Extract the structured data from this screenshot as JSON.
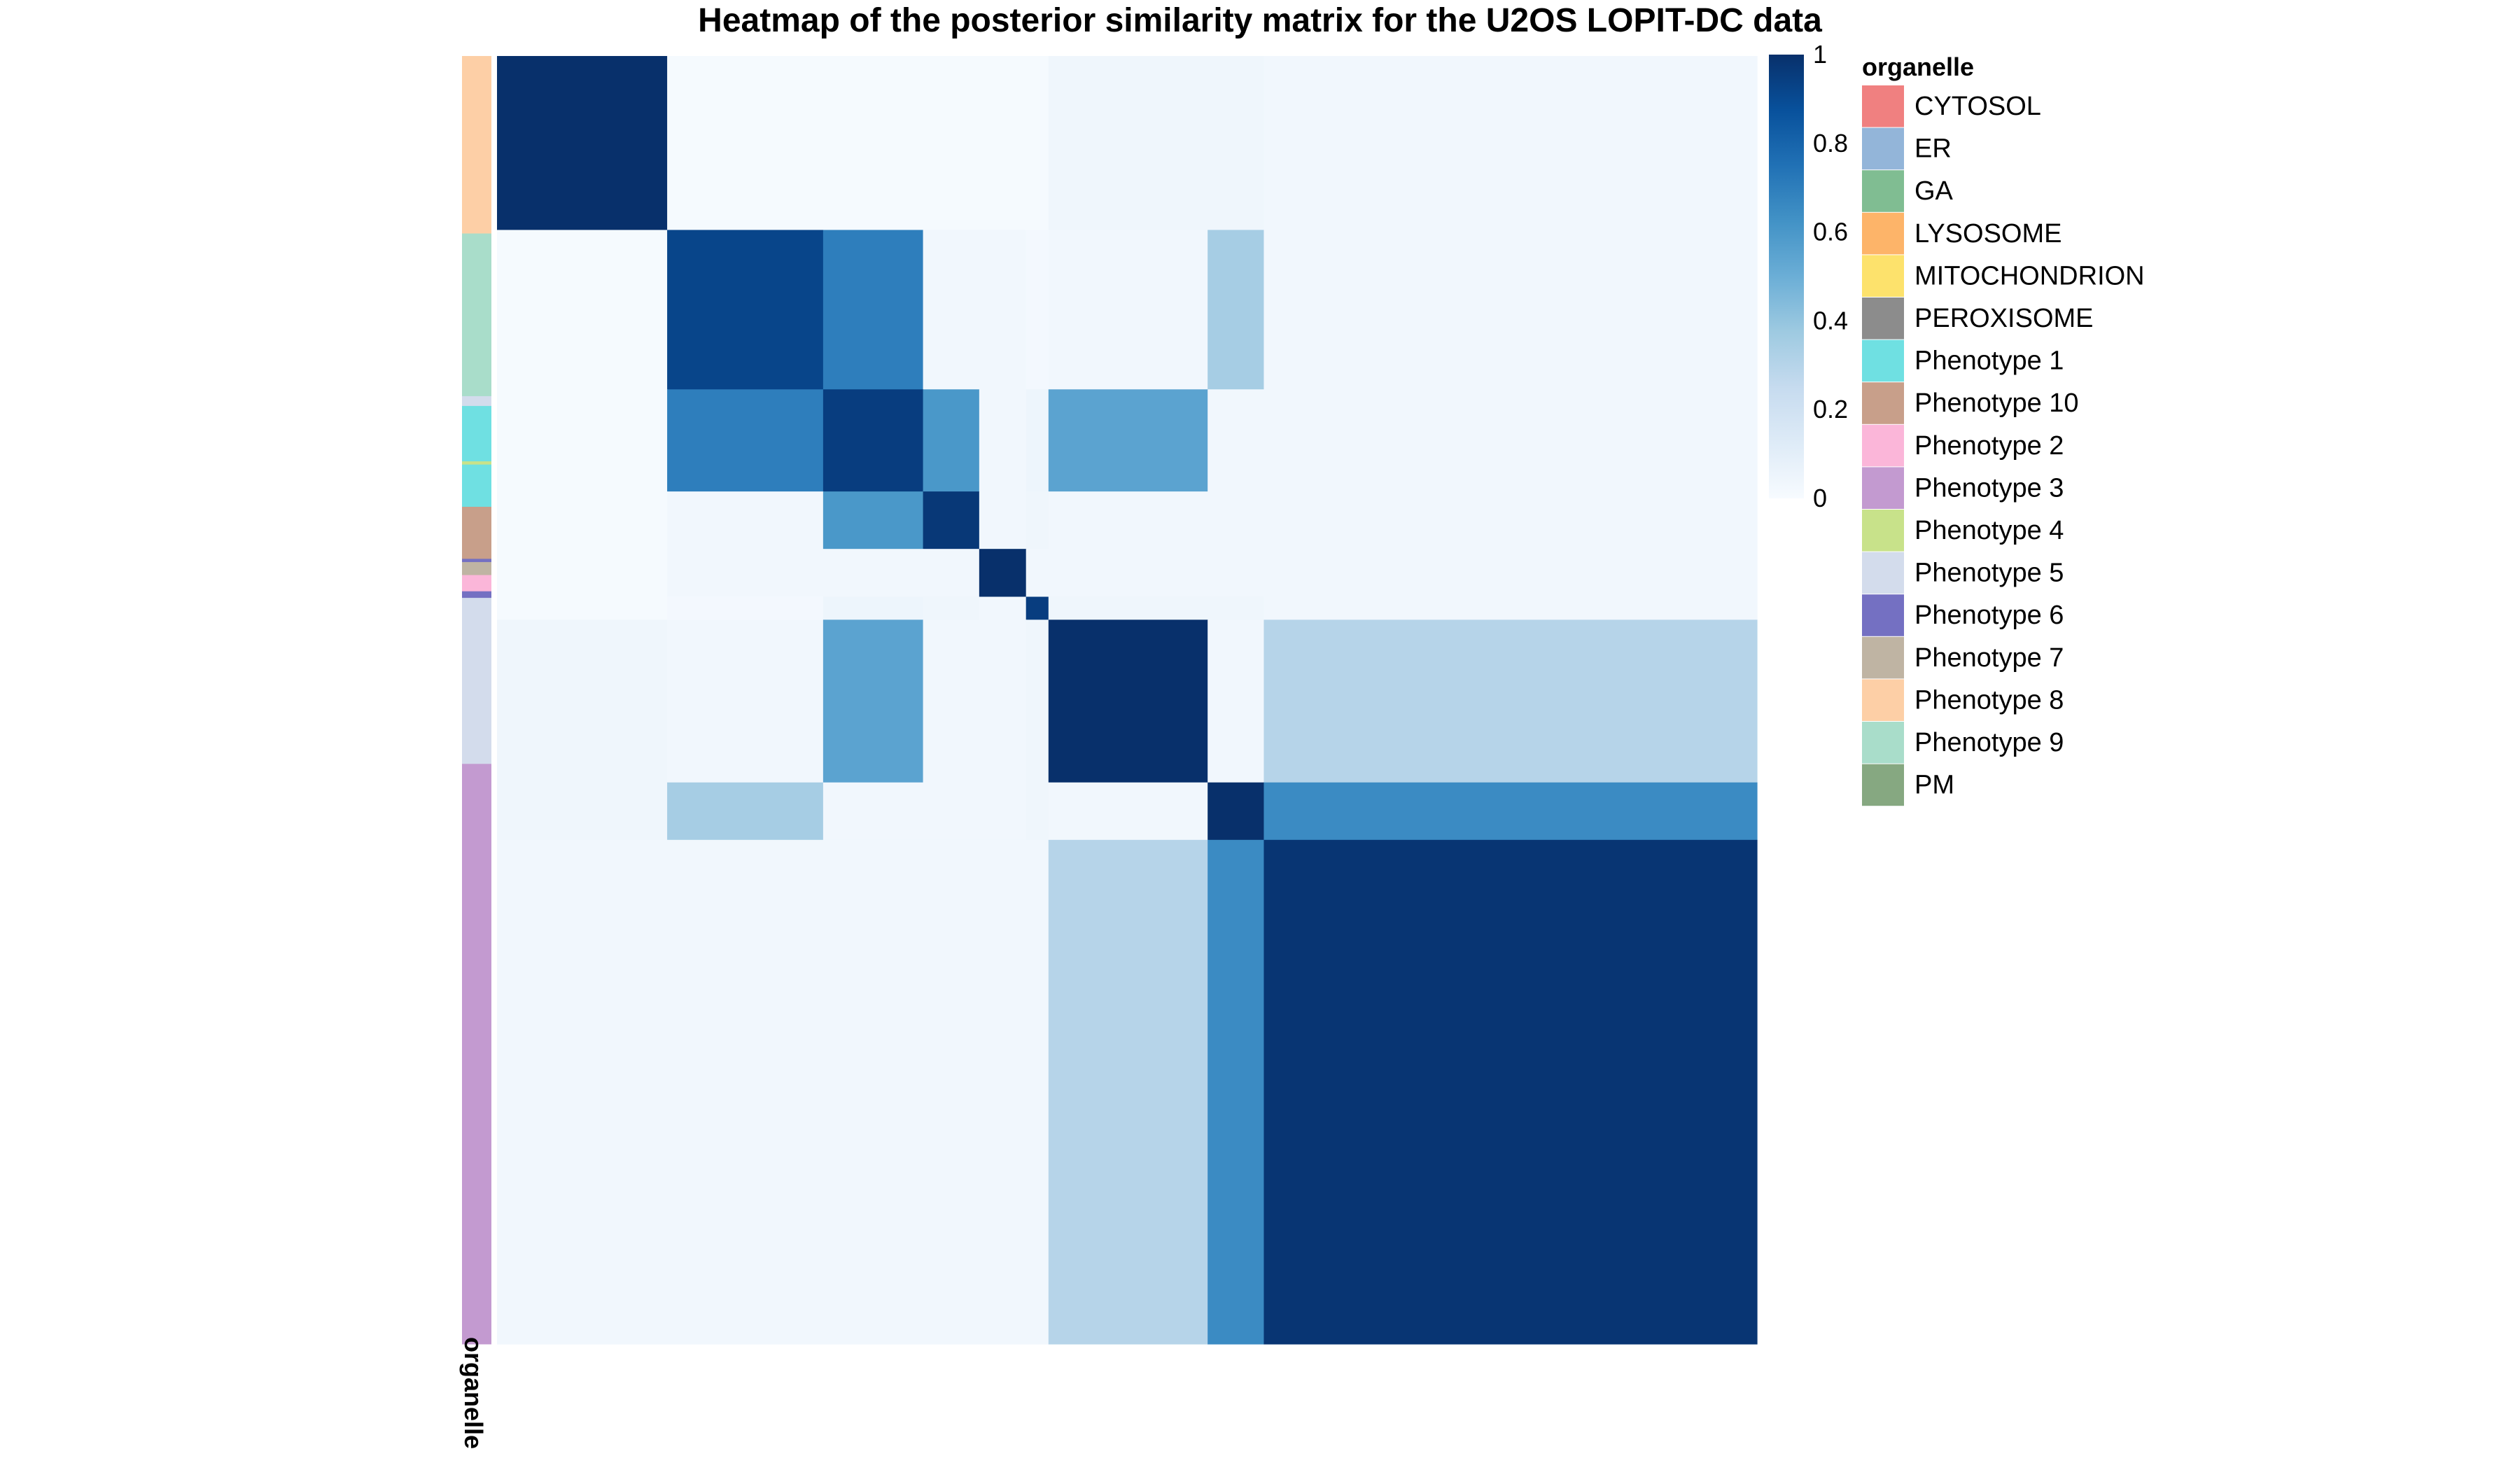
{
  "chart_data": {
    "type": "heatmap",
    "title": "Heatmap of the posterior similarity matrix for the U2OS LOPIT-DC data",
    "annotation_label": "organelle",
    "legend_title": "organelle",
    "colorbar": {
      "min": 0,
      "max": 1,
      "ticks": [
        0,
        0.2,
        0.4,
        0.6,
        0.8,
        1
      ],
      "tick_labels": [
        "0",
        "0.2",
        "0.4",
        "0.6",
        "0.8",
        "1"
      ],
      "colors": [
        "#f7fbff",
        "#deebf7",
        "#c6dbef",
        "#9ecae1",
        "#6baed6",
        "#4292c6",
        "#2171b5",
        "#08519c",
        "#08306b"
      ]
    },
    "organelles": [
      {
        "name": "CYTOSOL",
        "color": "#f08080"
      },
      {
        "name": "ER",
        "color": "#93b5d9"
      },
      {
        "name": "GA",
        "color": "#80bd92"
      },
      {
        "name": "LYSOSOME",
        "color": "#fdb469"
      },
      {
        "name": "MITOCHONDRION",
        "color": "#fde26c"
      },
      {
        "name": "PEROXISOME",
        "color": "#8c8c8c"
      },
      {
        "name": "Phenotype 1",
        "color": "#6fe0e2"
      },
      {
        "name": "Phenotype 10",
        "color": "#c89f8a"
      },
      {
        "name": "Phenotype 2",
        "color": "#fbb6d9"
      },
      {
        "name": "Phenotype 3",
        "color": "#c39ad0"
      },
      {
        "name": "Phenotype 4",
        "color": "#c8e28a"
      },
      {
        "name": "Phenotype 5",
        "color": "#d3dcec"
      },
      {
        "name": "Phenotype 6",
        "color": "#7470c2"
      },
      {
        "name": "Phenotype 7",
        "color": "#bfb4a3"
      },
      {
        "name": "Phenotype 8",
        "color": "#fdcfa6"
      },
      {
        "name": "Phenotype 9",
        "color": "#a9ddca"
      },
      {
        "name": "PM",
        "color": "#86a881"
      }
    ],
    "cluster_fractions": [
      0.1378,
      0.1263,
      0.0809,
      0.0455,
      0.0379,
      0.0182,
      0.1289,
      0.0455,
      0.3994
    ],
    "annotation_segments": [
      {
        "organelle": "Phenotype 8",
        "fraction": 0.1378
      },
      {
        "organelle": "Phenotype 9",
        "fraction": 0.1263
      },
      {
        "organelle": "Phenotype 5",
        "fraction": 0.0076
      },
      {
        "organelle": "Phenotype 1",
        "fraction": 0.043
      },
      {
        "organelle": "Phenotype 4",
        "fraction": 0.0025
      },
      {
        "organelle": "Phenotype 1",
        "fraction": 0.0328
      },
      {
        "organelle": "Phenotype 10",
        "fraction": 0.0404
      },
      {
        "organelle": "Phenotype 6",
        "fraction": 0.0025
      },
      {
        "organelle": "Phenotype 7",
        "fraction": 0.0101
      },
      {
        "organelle": "Phenotype 2",
        "fraction": 0.0126
      },
      {
        "organelle": "Phenotype 6",
        "fraction": 0.0051
      },
      {
        "organelle": "Phenotype 5",
        "fraction": 0.1289
      },
      {
        "organelle": "Phenotype 3",
        "fraction": 0.4504
      }
    ],
    "similarity": [
      [
        1.0,
        0.01,
        0.01,
        0.01,
        0.01,
        0.01,
        0.04,
        0.04,
        0.03
      ],
      [
        0.01,
        0.92,
        0.7,
        0.03,
        0.03,
        0.02,
        0.03,
        0.35,
        0.03
      ],
      [
        0.01,
        0.7,
        0.95,
        0.6,
        0.03,
        0.05,
        0.55,
        0.03,
        0.03
      ],
      [
        0.01,
        0.03,
        0.6,
        0.97,
        0.03,
        0.04,
        0.03,
        0.03,
        0.03
      ],
      [
        0.01,
        0.03,
        0.03,
        0.03,
        1.0,
        0.03,
        0.03,
        0.03,
        0.03
      ],
      [
        0.01,
        0.02,
        0.05,
        0.04,
        0.03,
        0.95,
        0.04,
        0.04,
        0.03
      ],
      [
        0.04,
        0.03,
        0.55,
        0.03,
        0.03,
        0.04,
        1.0,
        0.03,
        0.3
      ],
      [
        0.04,
        0.35,
        0.03,
        0.03,
        0.03,
        0.04,
        0.03,
        1.0,
        0.65
      ],
      [
        0.03,
        0.03,
        0.03,
        0.03,
        0.03,
        0.03,
        0.3,
        0.65,
        0.98
      ]
    ]
  }
}
